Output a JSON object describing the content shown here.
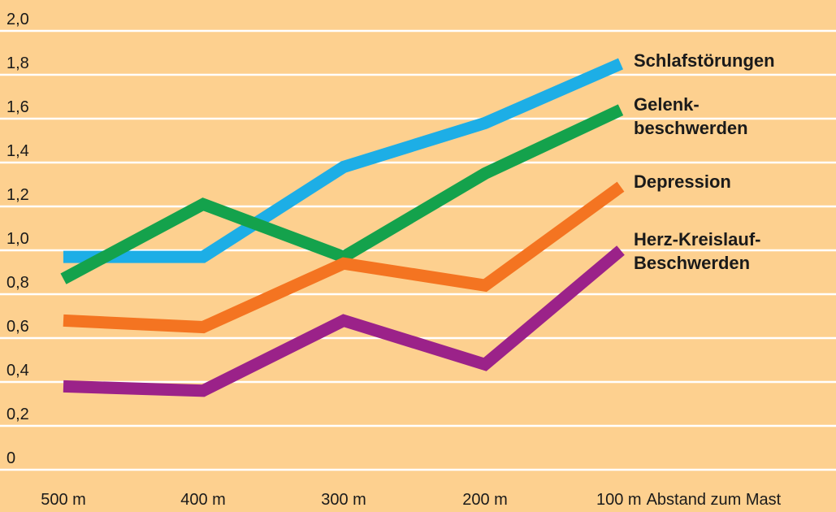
{
  "colors": {
    "background": "#fdd08f",
    "grid": "#ffffff"
  },
  "chart_data": {
    "type": "line",
    "title": "",
    "xlabel": "Abstand zum Mast",
    "ylabel": "",
    "categories": [
      "500 m",
      "400 m",
      "300 m",
      "200 m",
      "100 m"
    ],
    "ylim": [
      0,
      2.0
    ],
    "y_ticks": [
      "0",
      "0,2",
      "0,4",
      "0,6",
      "0,8",
      "1,0",
      "1,2",
      "1,4",
      "1,6",
      "1,8",
      "2,0"
    ],
    "grid": true,
    "series": [
      {
        "name": "Schlafstörungen",
        "color": "#1daee6",
        "values": [
          0.97,
          0.97,
          1.38,
          1.58,
          1.85
        ]
      },
      {
        "name": "Gelenkbeschwerden",
        "label_lines": [
          "Gelenk-",
          "beschwerden"
        ],
        "color": "#14a24c",
        "values": [
          0.87,
          1.21,
          0.97,
          1.35,
          1.64
        ]
      },
      {
        "name": "Depression",
        "color": "#f47421",
        "values": [
          0.68,
          0.65,
          0.94,
          0.84,
          1.29
        ]
      },
      {
        "name": "Herz-Kreislauf-Beschwerden",
        "label_lines": [
          "Herz-Kreislauf-",
          "Beschwerden"
        ],
        "color": "#9b2289",
        "values": [
          0.38,
          0.36,
          0.68,
          0.48,
          1.0
        ]
      }
    ]
  }
}
